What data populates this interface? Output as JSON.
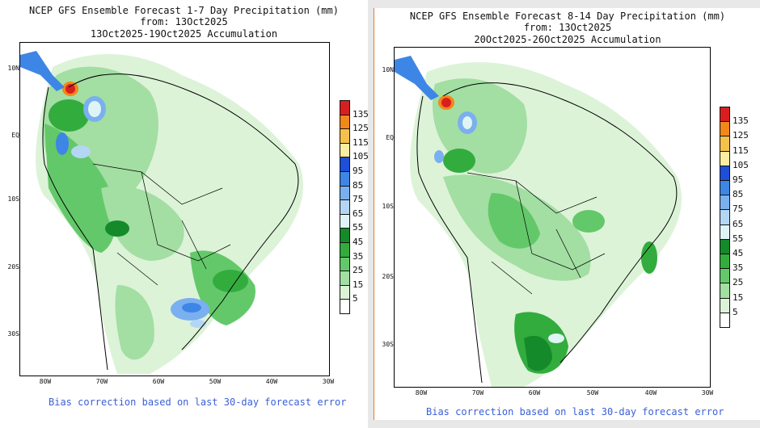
{
  "left": {
    "title_line1": "NCEP GFS Ensemble Forecast 1-7 Day Precipitation (mm)",
    "title_line2": "from: 13Oct2025",
    "title_line3": "13Oct2025-19Oct2025 Accumulation",
    "footer": "Bias correction based on last 30-day forecast error"
  },
  "right": {
    "title_line1": "NCEP GFS Ensemble Forecast 8-14 Day Precipitation (mm)",
    "title_line2": "from: 13Oct2025",
    "title_line3": "20Oct2025-26Oct2025 Accumulation",
    "footer": "Bias correction based on last 30-day forecast error"
  },
  "y_axis": [
    "10N",
    "EQ",
    "10S",
    "20S",
    "30S"
  ],
  "x_axis": [
    "80W",
    "70W",
    "60W",
    "50W",
    "40W",
    "30W"
  ],
  "legend": {
    "labels": [
      "135",
      "125",
      "115",
      "105",
      "95",
      "85",
      "75",
      "65",
      "55",
      "45",
      "35",
      "25",
      "15",
      "5"
    ],
    "colors": [
      "#d81f1f",
      "#f2881a",
      "#f5c14a",
      "#fbeea0",
      "#1d4fd8",
      "#3e86e6",
      "#7ab0ef",
      "#b4d6f5",
      "#dff4f4",
      "#148a2a",
      "#33ac3e",
      "#63c869",
      "#a3dea3",
      "#dcf3d8",
      "#ffffff"
    ]
  }
}
